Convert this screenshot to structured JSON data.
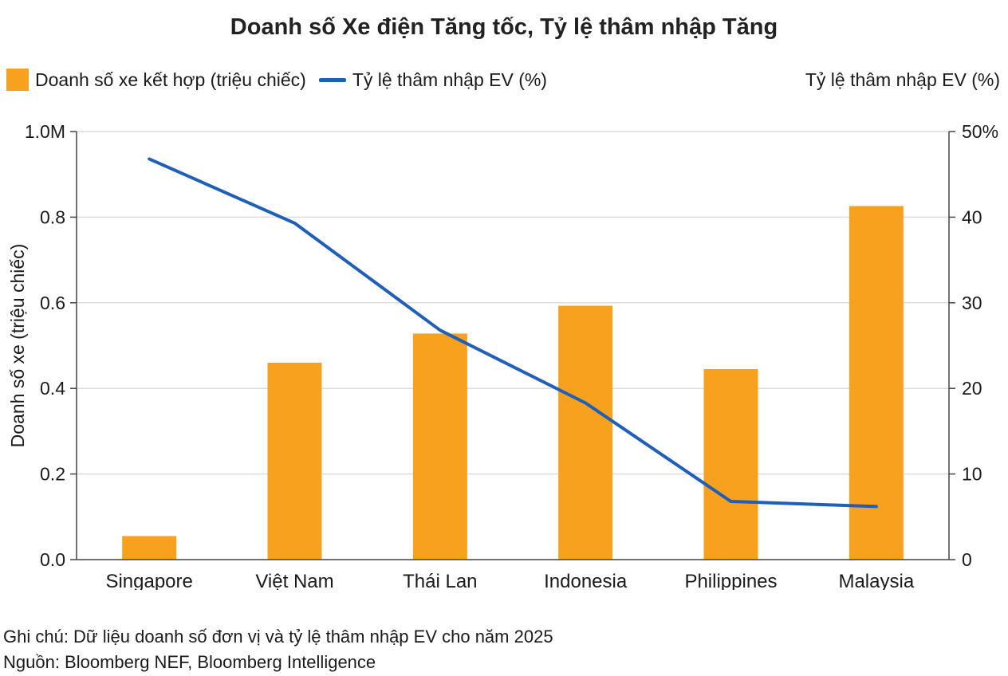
{
  "chart_data": {
    "type": "bar+line",
    "title": "Doanh số Xe điện Tăng tốc, Tỷ lệ thâm nhập Tăng",
    "categories": [
      "Singapore",
      "Việt Nam",
      "Thái Lan",
      "Indonesia",
      "Philippines",
      "Malaysia"
    ],
    "series": [
      {
        "name": "Doanh số xe kết hợp (triệu chiếc)",
        "type": "bar",
        "axis": "left",
        "color": "#f7a11e",
        "values": [
          0.055,
          0.46,
          0.528,
          0.593,
          0.445,
          0.826
        ]
      },
      {
        "name": "Tỷ lệ thâm nhập EV (%)",
        "type": "line",
        "axis": "right",
        "color": "#1f5fb8",
        "values": [
          46.8,
          39.3,
          26.8,
          18.3,
          6.8,
          6.2
        ]
      }
    ],
    "ylabel": "Doanh số xe (triệu chiếc)",
    "ylabel_right": "Tỷ lệ thâm nhập EV (%)",
    "ylim": [
      0,
      1.0
    ],
    "ylim_right": [
      0,
      50
    ],
    "yticks": [
      "0.0",
      "0.2",
      "0.4",
      "0.6",
      "0.8",
      "1.0M"
    ],
    "yticks_right": [
      "0",
      "10",
      "20",
      "30",
      "40",
      "50%"
    ],
    "grid": true,
    "legend_position": "top-left"
  },
  "notes": {
    "note": "Ghi chú: Dữ liệu doanh số đơn vị và tỷ lệ thâm nhập EV cho năm 2025",
    "source": "Nguồn: Bloomberg NEF, Bloomberg Intelligence"
  }
}
